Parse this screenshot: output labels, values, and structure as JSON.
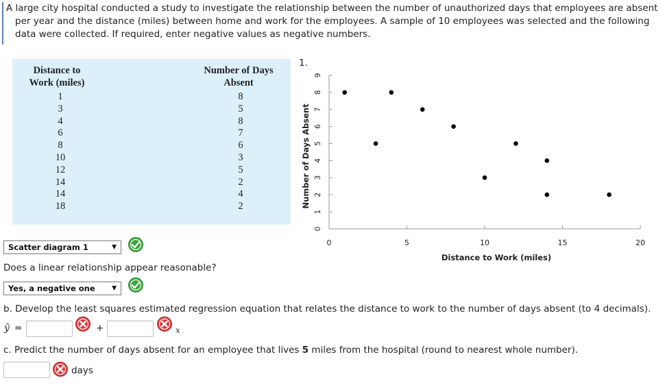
{
  "intro": {
    "line1": "A large city hospital conducted a study to investigate the relationship between the number of unauthorized days that employees are absent",
    "line2": "per year and the distance (miles) between home and work for the employees. A sample of 10 employees was selected and the following",
    "line3": "data were collected.  If required, enter negative values as negative numbers."
  },
  "table": {
    "col1_header_line1": "Distance to",
    "col1_header_line2": "Work (miles)",
    "col2_header_line1": "Number of Days",
    "col2_header_line2": "Absent",
    "distance": [
      "1",
      "3",
      "4",
      "6",
      "8",
      "10",
      "12",
      "14",
      "14",
      "18"
    ],
    "days_absent": [
      "8",
      "5",
      "8",
      "7",
      "6",
      "3",
      "5",
      "2",
      "4",
      "2"
    ]
  },
  "figure_number": "1.",
  "chart_data": {
    "type": "scatter",
    "xlabel": "Distance to Work (miles)",
    "ylabel": "Number of Days Absent",
    "xlim": [
      0,
      20
    ],
    "ylim": [
      0,
      9
    ],
    "x_ticks": [
      "0",
      "5",
      "10",
      "15",
      "20"
    ],
    "y_ticks": [
      "0",
      "1",
      "2",
      "3",
      "4",
      "5",
      "6",
      "7",
      "8",
      "9"
    ],
    "points": [
      {
        "x": 1,
        "y": 8
      },
      {
        "x": 3,
        "y": 5
      },
      {
        "x": 4,
        "y": 8
      },
      {
        "x": 6,
        "y": 7
      },
      {
        "x": 8,
        "y": 6
      },
      {
        "x": 10,
        "y": 3
      },
      {
        "x": 12,
        "y": 5
      },
      {
        "x": 14,
        "y": 2
      },
      {
        "x": 14,
        "y": 4
      },
      {
        "x": 18,
        "y": 2
      }
    ],
    "marker_color": "#000000",
    "grid": false
  },
  "controls": {
    "diagram_select": "Scatter diagram 1",
    "linear_question": "Does a linear relationship appear reasonable?",
    "linear_select": "Yes, a negative one",
    "part_b": "b. Develop the least squares estimated regression equation that relates the distance to work to the number of days absent (to 4 decimals).",
    "yhat_symbol": "ŷ",
    "equals": "=",
    "plus": "+",
    "x_var": "x",
    "intercept_value": "",
    "slope_value": "",
    "part_c_before": "c. Predict the number of days absent for an employee that lives ",
    "part_c_value": "5",
    "part_c_after": " miles from the hospital (round to nearest whole number).",
    "prediction_value": "",
    "days_unit": "days"
  },
  "colors": {
    "correct_green": "#3aa63a",
    "wrong_red": "#d9383a",
    "table_bg": "#dcf0fa"
  }
}
